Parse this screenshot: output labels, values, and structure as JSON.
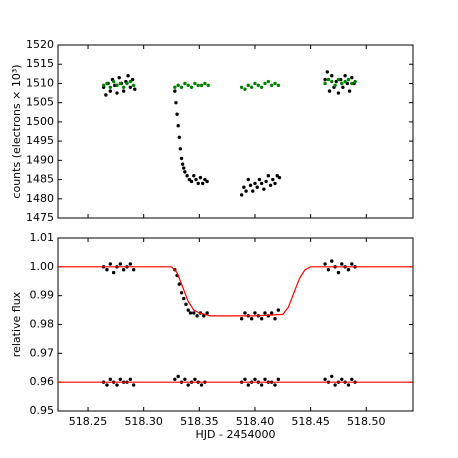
{
  "chart_data": [
    {
      "type": "scatter",
      "ylabel": "counts (electrons × 10³)",
      "xlim": [
        518.223,
        518.542
      ],
      "ylim": [
        1475,
        1520
      ],
      "yticks": [
        1475,
        1480,
        1485,
        1490,
        1495,
        1500,
        1505,
        1510,
        1515,
        1520
      ],
      "series": [
        {
          "color": "#000000",
          "marker": "dot",
          "x": [
            518.264,
            518.266,
            518.268,
            518.27,
            518.272,
            518.274,
            518.276,
            518.278,
            518.28,
            518.282,
            518.284,
            518.286,
            518.288,
            518.29,
            518.292,
            518.328,
            518.329,
            518.33,
            518.331,
            518.332,
            518.333,
            518.334,
            518.335,
            518.336,
            518.337,
            518.339,
            518.341,
            518.343,
            518.345,
            518.347,
            518.349,
            518.351,
            518.353,
            518.355,
            518.357,
            518.388,
            518.39,
            518.392,
            518.394,
            518.396,
            518.398,
            518.4,
            518.402,
            518.404,
            518.406,
            518.408,
            518.41,
            518.412,
            518.414,
            518.416,
            518.418,
            518.42,
            518.422,
            518.463,
            518.465,
            518.467,
            518.469,
            518.471,
            518.473,
            518.475,
            518.477,
            518.479,
            518.481,
            518.483,
            518.485,
            518.487,
            518.489
          ],
          "values": [
            1509,
            1507,
            1510,
            1508,
            1511,
            1509.5,
            1507.5,
            1511.5,
            1510,
            1508,
            1510.5,
            1512,
            1509,
            1511,
            1508.5,
            1508,
            1505,
            1502,
            1499,
            1496,
            1493,
            1490.5,
            1489,
            1488,
            1487,
            1486,
            1485,
            1484.5,
            1486,
            1485,
            1484,
            1485.5,
            1484,
            1485,
            1484.5,
            1481,
            1483,
            1482,
            1485,
            1483.5,
            1482,
            1484,
            1483,
            1485,
            1484,
            1482.5,
            1484.5,
            1486,
            1483.5,
            1485,
            1484,
            1486,
            1485.5,
            1511,
            1513,
            1508,
            1512,
            1509,
            1510.5,
            1507.5,
            1511,
            1509,
            1512,
            1510,
            1508,
            1511.5,
            1510
          ]
        },
        {
          "color": "#008000",
          "marker": "dot",
          "x": [
            518.264,
            518.267,
            518.27,
            518.273,
            518.276,
            518.279,
            518.282,
            518.285,
            518.288,
            518.291,
            518.328,
            518.331,
            518.334,
            518.337,
            518.34,
            518.343,
            518.346,
            518.349,
            518.352,
            518.355,
            518.358,
            518.388,
            518.391,
            518.394,
            518.397,
            518.4,
            518.403,
            518.406,
            518.409,
            518.412,
            518.415,
            518.418,
            518.421,
            518.463,
            518.466,
            518.469,
            518.472,
            518.475,
            518.478,
            518.481,
            518.484,
            518.487,
            518.49
          ],
          "values": [
            1509.5,
            1510,
            1509,
            1510.5,
            1509.5,
            1510,
            1509,
            1510,
            1510.5,
            1509.5,
            1509,
            1509.5,
            1509,
            1510,
            1509.5,
            1509,
            1510,
            1509.5,
            1509.5,
            1510,
            1509.5,
            1509,
            1508.5,
            1509.5,
            1509,
            1510,
            1509.5,
            1509,
            1510,
            1510.5,
            1509.5,
            1510,
            1509.5,
            1510,
            1511,
            1510.5,
            1509.5,
            1511,
            1510,
            1510.5,
            1511,
            1510,
            1510.5
          ]
        }
      ]
    },
    {
      "type": "scatter",
      "xlabel": "HJD - 2454000",
      "ylabel": "relative flux",
      "xlim": [
        518.223,
        518.542
      ],
      "ylim": [
        0.95,
        1.01
      ],
      "xticks": [
        518.25,
        {
          "value": 518.3,
          "label": "518.30"
        },
        518.35,
        {
          "value": 518.4,
          "label": "518.40"
        },
        518.45,
        {
          "value": 518.5,
          "label": "518.50"
        }
      ],
      "yticks": [
        0.95,
        0.96,
        0.97,
        0.98,
        0.99,
        {
          "value": 1,
          "label": "1.00"
        },
        1.01
      ],
      "series": [
        {
          "color": "#000000",
          "marker": "dot",
          "x": [
            518.264,
            518.267,
            518.27,
            518.273,
            518.276,
            518.279,
            518.282,
            518.285,
            518.288,
            518.291,
            518.328,
            518.33,
            518.332,
            518.334,
            518.336,
            518.338,
            518.34,
            518.342,
            518.345,
            518.348,
            518.351,
            518.354,
            518.357,
            518.388,
            518.391,
            518.394,
            518.397,
            518.4,
            518.403,
            518.406,
            518.409,
            518.412,
            518.415,
            518.418,
            518.421,
            518.463,
            518.466,
            518.469,
            518.472,
            518.475,
            518.478,
            518.481,
            518.484,
            518.487,
            518.49
          ],
          "values": [
            1.0,
            0.999,
            1.001,
            0.998,
            1.0,
            1.001,
            0.999,
            1.0,
            1.001,
            0.999,
            0.999,
            0.997,
            0.994,
            0.991,
            0.989,
            0.987,
            0.985,
            0.984,
            0.984,
            0.983,
            0.984,
            0.983,
            0.984,
            0.982,
            0.984,
            0.983,
            0.982,
            0.984,
            0.983,
            0.982,
            0.984,
            0.983,
            0.984,
            0.982,
            0.985,
            1.001,
            0.999,
            1.002,
            1.0,
            0.998,
            1.001,
            1.0,
            0.999,
            1.001,
            1.0
          ]
        },
        {
          "color": "#000000",
          "marker": "dot",
          "x": [
            518.264,
            518.267,
            518.27,
            518.273,
            518.276,
            518.279,
            518.282,
            518.285,
            518.288,
            518.291,
            518.328,
            518.331,
            518.334,
            518.337,
            518.34,
            518.343,
            518.346,
            518.349,
            518.352,
            518.355,
            518.388,
            518.391,
            518.394,
            518.397,
            518.4,
            518.403,
            518.406,
            518.409,
            518.412,
            518.415,
            518.418,
            518.421,
            518.463,
            518.466,
            518.469,
            518.472,
            518.475,
            518.478,
            518.481,
            518.484,
            518.487,
            518.49
          ],
          "values": [
            0.96,
            0.959,
            0.961,
            0.96,
            0.959,
            0.961,
            0.96,
            0.96,
            0.961,
            0.959,
            0.961,
            0.962,
            0.96,
            0.961,
            0.959,
            0.96,
            0.961,
            0.96,
            0.959,
            0.96,
            0.96,
            0.961,
            0.959,
            0.96,
            0.961,
            0.96,
            0.959,
            0.961,
            0.96,
            0.96,
            0.959,
            0.961,
            0.961,
            0.96,
            0.962,
            0.959,
            0.96,
            0.961,
            0.96,
            0.959,
            0.961,
            0.96
          ]
        },
        {
          "color": "#ff0000",
          "marker": "line",
          "x": [
            518.223,
            518.325,
            518.33,
            518.335,
            518.34,
            518.345,
            518.35,
            518.36,
            518.4,
            518.425,
            518.43,
            518.435,
            518.44,
            518.445,
            518.45,
            518.542
          ],
          "values": [
            1.0,
            1.0,
            0.998,
            0.993,
            0.988,
            0.985,
            0.984,
            0.983,
            0.983,
            0.9835,
            0.986,
            0.991,
            0.996,
            0.999,
            1.0,
            1.0
          ]
        },
        {
          "color": "#ff0000",
          "marker": "line",
          "x": [
            518.223,
            518.542
          ],
          "values": [
            0.96,
            0.96
          ]
        }
      ]
    }
  ]
}
